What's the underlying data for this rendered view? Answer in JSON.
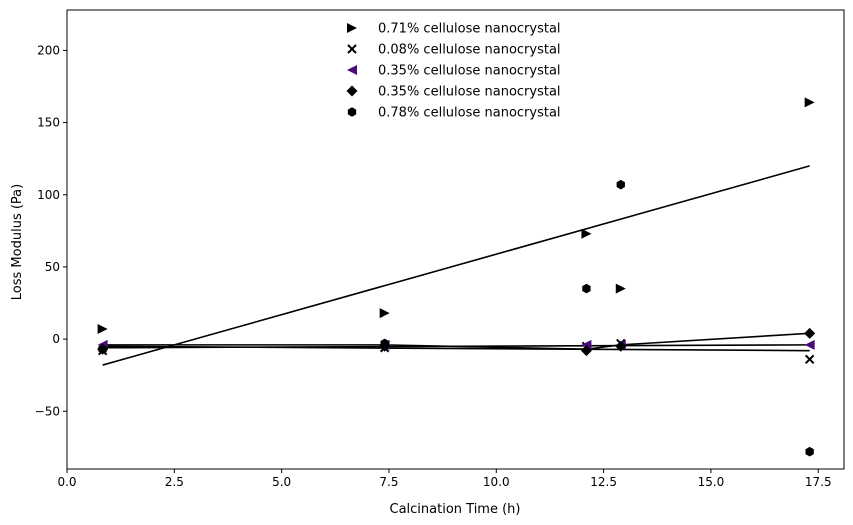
{
  "chart_data": {
    "type": "scatter",
    "xlabel": "Calcination Time (h)",
    "ylabel": "Loss Modulus (Pa)",
    "xlim": [
      0,
      18.1
    ],
    "ylim": [
      -90,
      228
    ],
    "xticks": [
      0.0,
      2.5,
      5.0,
      7.5,
      10.0,
      12.5,
      15.0,
      17.5
    ],
    "xtick_labels": [
      "0.0",
      "2.5",
      "5.0",
      "7.5",
      "10.0",
      "12.5",
      "15.0",
      "17.5"
    ],
    "yticks": [
      -50,
      0,
      50,
      100,
      150,
      200
    ],
    "ytick_labels": [
      "−50",
      "0",
      "50",
      "100",
      "150",
      "200"
    ],
    "grid": false,
    "legend_position": "top-center",
    "series": [
      {
        "name": "0.71% cellulose nanocrystal",
        "marker": "triangle-right",
        "color": "#000000",
        "points": [
          [
            0.83,
            7
          ],
          [
            7.4,
            18
          ],
          [
            12.1,
            73
          ],
          [
            12.9,
            35
          ],
          [
            17.3,
            164
          ]
        ]
      },
      {
        "name": "0.08% cellulose nanocrystal",
        "marker": "x",
        "color": "#000000",
        "points": [
          [
            0.83,
            -8
          ],
          [
            7.4,
            -6
          ],
          [
            12.1,
            -5
          ],
          [
            12.9,
            -3
          ],
          [
            17.3,
            -14
          ]
        ]
      },
      {
        "name": "0.35% cellulose nanocrystal",
        "marker": "triangle-left",
        "color": "#4b0a7a",
        "points": [
          [
            0.83,
            -4
          ],
          [
            7.4,
            -4
          ],
          [
            12.1,
            -4
          ],
          [
            12.9,
            -4
          ],
          [
            17.3,
            -4
          ]
        ]
      },
      {
        "name": "0.35% cellulose nanocrystal",
        "marker": "diamond",
        "color": "#000000",
        "points": [
          [
            0.83,
            -7
          ],
          [
            7.4,
            -5
          ],
          [
            12.1,
            -8
          ],
          [
            12.9,
            -5
          ],
          [
            17.3,
            4
          ]
        ]
      },
      {
        "name": "0.78% cellulose nanocrystal",
        "marker": "hexagon",
        "color": "#000000",
        "points": [
          [
            0.83,
            -7
          ],
          [
            7.4,
            -3
          ],
          [
            12.1,
            35
          ],
          [
            12.9,
            107
          ],
          [
            17.3,
            -78
          ]
        ]
      }
    ],
    "trend_lines": [
      {
        "x": [
          0.83,
          17.3
        ],
        "y": [
          -18,
          120
        ]
      },
      {
        "x": [
          0.83,
          17.3
        ],
        "y": [
          -5,
          -8
        ]
      },
      {
        "x": [
          0.83,
          17.3
        ],
        "y": [
          -6,
          -4
        ]
      },
      {
        "x": [
          0.83,
          7.4,
          12.1,
          12.9,
          17.3
        ],
        "y": [
          -4,
          -4,
          -7,
          -4,
          4
        ]
      }
    ]
  }
}
